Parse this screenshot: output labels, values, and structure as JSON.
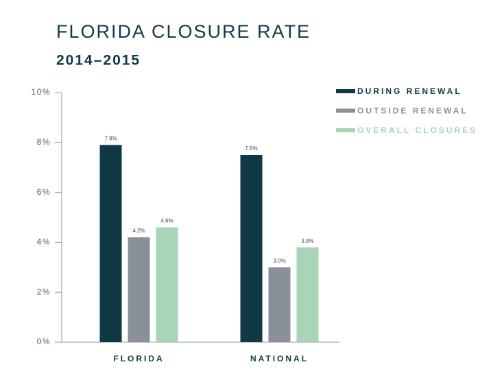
{
  "chart_data": {
    "type": "bar",
    "title": "FLORIDA CLOSURE RATE",
    "subtitle": "2014–2015",
    "categories": [
      "FLORIDA",
      "NATIONAL"
    ],
    "series": [
      {
        "name": "DURING RENEWAL",
        "color": "#0f3a45",
        "values": [
          7.9,
          7.5
        ],
        "value_labels": [
          "7.9%",
          "7.5%"
        ]
      },
      {
        "name": "OUTSIDE RENEWAL",
        "color": "#8a9099",
        "values": [
          4.2,
          3.0
        ],
        "value_labels": [
          "4.2%",
          "3.0%"
        ]
      },
      {
        "name": "OVERALL CLOSURES",
        "color": "#a9d4b8",
        "values": [
          4.6,
          3.8
        ],
        "value_labels": [
          "4.6%",
          "3.8%"
        ]
      }
    ],
    "ylim": [
      0,
      10
    ],
    "yticks": [
      {
        "value": 0,
        "label": "0%"
      },
      {
        "value": 2,
        "label": "2%"
      },
      {
        "value": 4,
        "label": "4%"
      },
      {
        "value": 6,
        "label": "6%"
      },
      {
        "value": 8,
        "label": "8%"
      },
      {
        "value": 10,
        "label": "10%"
      }
    ],
    "legend": "top-right"
  }
}
